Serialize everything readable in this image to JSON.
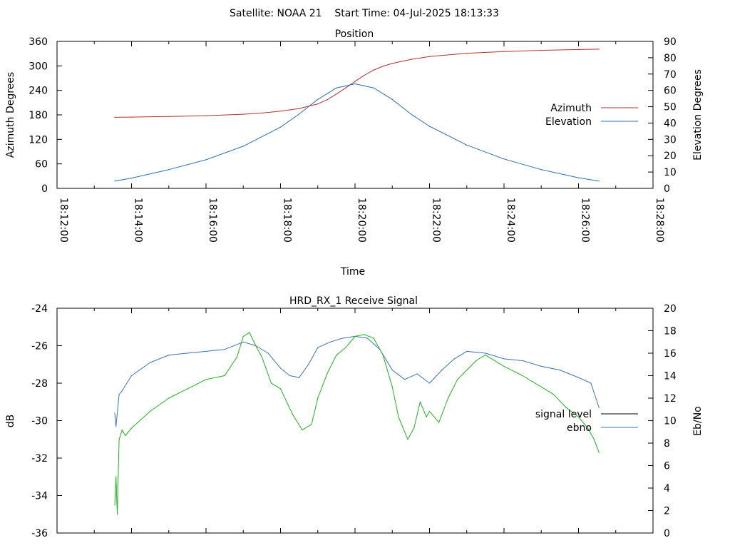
{
  "page_title": "Satellite: NOAA 21    Start Time: 04-Jul-2025 18:13:33",
  "chart_data": [
    {
      "type": "line",
      "title": "Position",
      "xlabel": "Time",
      "ylabel": "Azimuth Degrees",
      "y2label": "Elevation Degrees",
      "x_ticks": [
        "18:12:00",
        "18:14:00",
        "18:16:00",
        "18:18:00",
        "18:20:00",
        "18:22:00",
        "18:24:00",
        "18:26:00",
        "18:28:00"
      ],
      "x_minor_ticks_per_interval": 2,
      "xlim_seconds": [
        0,
        960
      ],
      "ylim": [
        0,
        360
      ],
      "y_ticks": [
        "0",
        "60",
        "120",
        "180",
        "240",
        "300",
        "360"
      ],
      "y2lim": [
        0,
        90
      ],
      "y2_ticks": [
        "0",
        "10",
        "20",
        "30",
        "40",
        "50",
        "60",
        "70",
        "80",
        "90"
      ],
      "grid": false,
      "legend_position": "right",
      "series": [
        {
          "name": "Azimuth",
          "axis": "y",
          "color": "#b03030",
          "x": [
            "18:13:33",
            "18:14:00",
            "18:15:00",
            "18:16:00",
            "18:17:00",
            "18:17:30",
            "18:18:00",
            "18:18:30",
            "18:19:00",
            "18:19:15",
            "18:19:30",
            "18:19:45",
            "18:20:00",
            "18:20:15",
            "18:20:30",
            "18:20:45",
            "18:21:00",
            "18:21:30",
            "18:22:00",
            "18:23:00",
            "18:24:00",
            "18:25:00",
            "18:26:00",
            "18:26:33"
          ],
          "values": [
            174,
            174.5,
            176,
            178,
            181.5,
            184.5,
            189,
            195.5,
            207,
            217,
            231,
            246,
            262,
            277,
            290,
            299,
            306,
            316,
            323,
            331,
            335,
            338,
            340,
            341
          ]
        },
        {
          "name": "Elevation",
          "axis": "y2",
          "color": "#2c6fb5",
          "x": [
            "18:13:33",
            "18:14:00",
            "18:15:00",
            "18:16:00",
            "18:17:00",
            "18:18:00",
            "18:18:30",
            "18:19:00",
            "18:19:30",
            "18:20:00",
            "18:20:30",
            "18:21:00",
            "18:21:30",
            "18:22:00",
            "18:23:00",
            "18:24:00",
            "18:25:00",
            "18:26:00",
            "18:26:33"
          ],
          "values": [
            4.5,
            6.3,
            11.5,
            17.5,
            25.8,
            37.5,
            45.5,
            54.5,
            61.5,
            64,
            61.5,
            54.5,
            45.5,
            38,
            26.5,
            18,
            11.5,
            6.5,
            4.5
          ]
        }
      ]
    },
    {
      "type": "line",
      "title": "HRD_RX_1 Receive Signal",
      "xlabel": "",
      "ylabel": "dB",
      "y2label": "Eb/No",
      "xlim_seconds": [
        0,
        960
      ],
      "ylim": [
        -36,
        -24
      ],
      "y_ticks": [
        "-36",
        "-34",
        "-32",
        "-30",
        "-28",
        "-26",
        "-24"
      ],
      "y2lim": [
        0,
        20
      ],
      "y2_ticks": [
        "0",
        "2",
        "4",
        "6",
        "8",
        "10",
        "12",
        "14",
        "16",
        "18",
        "20"
      ],
      "grid": false,
      "legend_position": "right",
      "series": [
        {
          "name": "signal level",
          "axis": "y",
          "color": "#000000",
          "x": [],
          "values": []
        },
        {
          "name": "ebno",
          "axis": "y",
          "color": "#3a74b4",
          "x": [
            "18:13:33",
            "18:13:35",
            "18:13:40",
            "18:13:45",
            "18:14:00",
            "18:14:30",
            "18:15:00",
            "18:15:30",
            "18:16:00",
            "18:16:30",
            "18:17:00",
            "18:17:20",
            "18:17:40",
            "18:18:00",
            "18:18:15",
            "18:18:30",
            "18:18:45",
            "18:19:00",
            "18:19:20",
            "18:19:40",
            "18:20:00",
            "18:20:20",
            "18:20:40",
            "18:21:00",
            "18:21:20",
            "18:21:40",
            "18:22:00",
            "18:22:20",
            "18:22:40",
            "18:23:00",
            "18:23:30",
            "18:24:00",
            "18:24:30",
            "18:25:00",
            "18:25:30",
            "18:26:00",
            "18:26:20",
            "18:26:33"
          ],
          "values": [
            -29.6,
            -30.3,
            -28.6,
            -28.4,
            -27.6,
            -26.9,
            -26.5,
            -26.4,
            -26.3,
            -26.2,
            -25.8,
            -26.0,
            -26.4,
            -27.2,
            -27.6,
            -27.7,
            -27.0,
            -26.1,
            -25.8,
            -25.6,
            -25.5,
            -25.6,
            -26.2,
            -27.3,
            -27.8,
            -27.5,
            -28.0,
            -27.3,
            -26.7,
            -26.3,
            -26.4,
            -26.7,
            -26.8,
            -27.1,
            -27.3,
            -27.7,
            -28.0,
            -29.3
          ]
        },
        {
          "name": "",
          "axis": "y",
          "color": "#1eb41e",
          "x": [
            "18:13:33",
            "18:13:35",
            "18:13:37",
            "18:13:40",
            "18:13:45",
            "18:13:50",
            "18:14:00",
            "18:14:30",
            "18:15:00",
            "18:15:30",
            "18:16:00",
            "18:16:30",
            "18:16:50",
            "18:17:00",
            "18:17:10",
            "18:17:20",
            "18:17:30",
            "18:17:45",
            "18:18:00",
            "18:18:10",
            "18:18:20",
            "18:18:35",
            "18:18:50",
            "18:19:00",
            "18:19:15",
            "18:19:30",
            "18:19:45",
            "18:20:00",
            "18:20:15",
            "18:20:30",
            "18:20:45",
            "18:21:00",
            "18:21:10",
            "18:21:25",
            "18:21:35",
            "18:21:45",
            "18:21:55",
            "18:22:00",
            "18:22:15",
            "18:22:30",
            "18:22:45",
            "18:23:00",
            "18:23:15",
            "18:23:30",
            "18:24:00",
            "18:24:30",
            "18:25:00",
            "18:25:20",
            "18:25:40",
            "18:26:00",
            "18:26:15",
            "18:26:25",
            "18:26:33"
          ],
          "values": [
            -34.5,
            -33.0,
            -35.0,
            -31.0,
            -30.5,
            -30.8,
            -30.4,
            -29.5,
            -28.8,
            -28.3,
            -27.8,
            -27.6,
            -26.6,
            -25.5,
            -25.3,
            -26.0,
            -26.6,
            -28.0,
            -28.3,
            -29.0,
            -29.7,
            -30.5,
            -30.2,
            -28.8,
            -27.5,
            -26.5,
            -26.1,
            -25.5,
            -25.4,
            -25.6,
            -26.5,
            -28.2,
            -29.8,
            -31.0,
            -30.4,
            -29.0,
            -29.8,
            -29.5,
            -30.1,
            -28.8,
            -27.8,
            -27.3,
            -26.8,
            -26.5,
            -27.1,
            -27.6,
            -28.2,
            -28.6,
            -29.3,
            -29.8,
            -30.4,
            -31.0,
            -31.7
          ]
        }
      ]
    }
  ]
}
